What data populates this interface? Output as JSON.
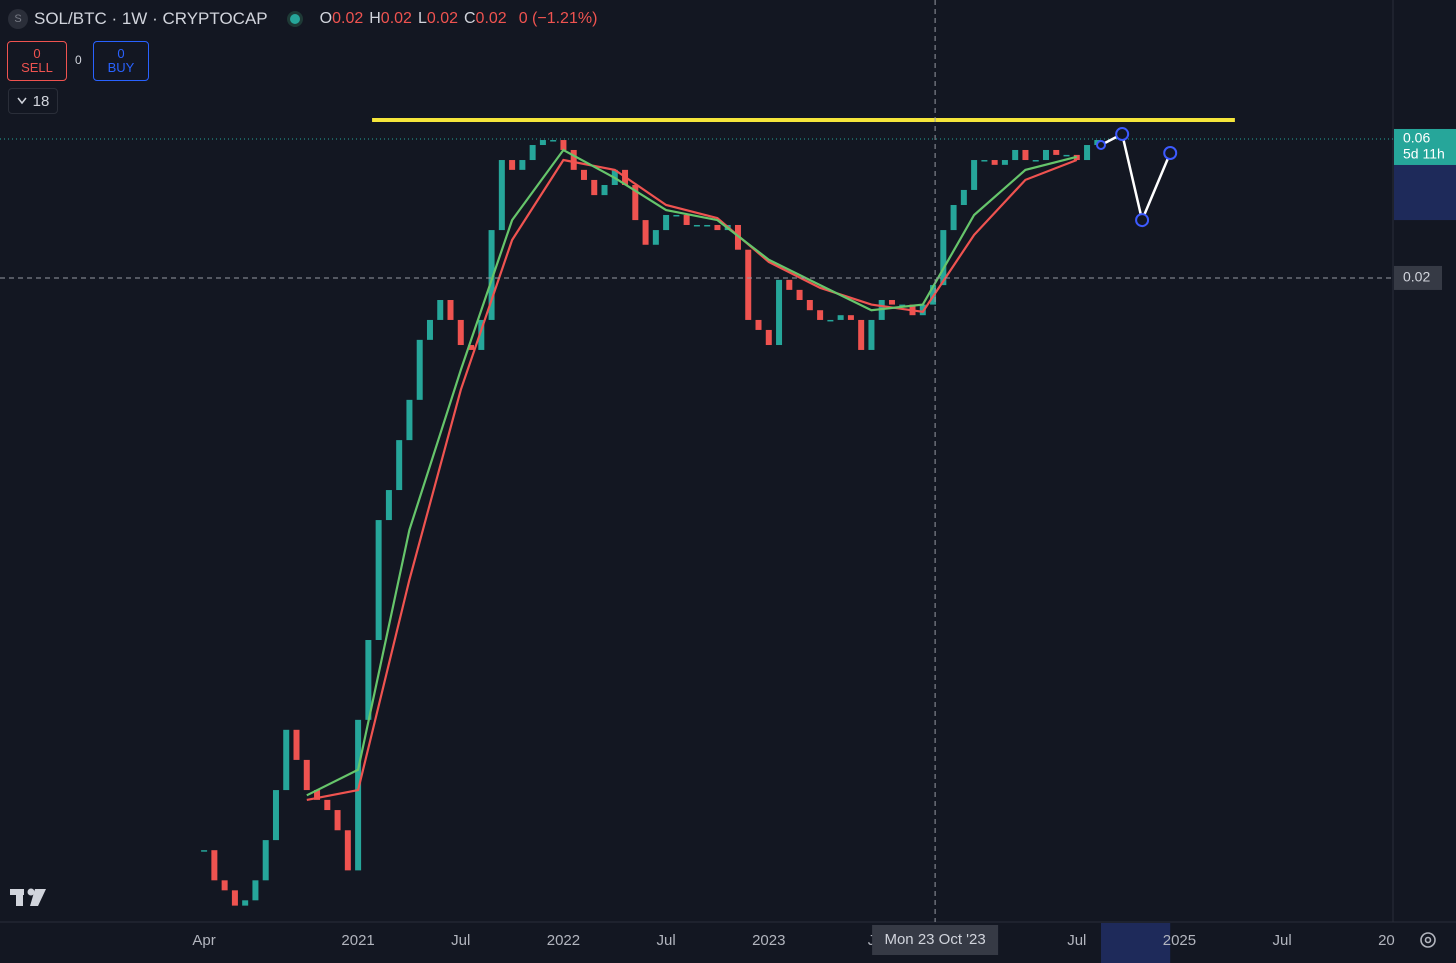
{
  "header": {
    "symbol_icon": "S",
    "title": "SOL/BTC · 1W · CRYPTOCAP",
    "ohlc": [
      {
        "label": "O",
        "value": "0.02"
      },
      {
        "label": "H",
        "value": "0.02"
      },
      {
        "label": "L",
        "value": "0.02"
      },
      {
        "label": "C",
        "value": "0.02"
      }
    ],
    "change": "0 (−1.21%)"
  },
  "trade": {
    "sell_price": "0",
    "sell_label": "SELL",
    "spread": "0",
    "buy_price": "0",
    "buy_label": "BUY"
  },
  "indicators_count": "18",
  "chart_data": {
    "type": "candlestick",
    "log_scale": true,
    "up_color": "#26a69a",
    "down_color": "#ef5350",
    "xlim": [
      2019.256,
      2026.04
    ],
    "ylim": [
      0.000123,
      0.18
    ],
    "xticks": [
      {
        "value": 2020.25,
        "label": "Apr"
      },
      2021,
      {
        "value": 2021.5,
        "label": "Jul"
      },
      2022,
      {
        "value": 2022.5,
        "label": "Jul"
      },
      2023,
      {
        "value": 2023.5,
        "label": "J"
      },
      {
        "value": 2024.5,
        "label": "Jul"
      },
      2025,
      {
        "value": 2025.5,
        "label": "Jul"
      },
      {
        "value": 2026,
        "label": "20"
      }
    ],
    "x": [
      2020.25,
      2020.3,
      2020.35,
      2020.4,
      2020.45,
      2020.5,
      2020.55,
      2020.6,
      2020.65,
      2020.7,
      2020.75,
      2020.8,
      2020.85,
      2020.9,
      2020.95,
      2021.0,
      2021.05,
      2021.1,
      2021.15,
      2021.2,
      2021.25,
      2021.3,
      2021.35,
      2021.4,
      2021.45,
      2021.5,
      2021.55,
      2021.6,
      2021.65,
      2021.7,
      2021.75,
      2021.8,
      2021.85,
      2021.9,
      2021.95,
      2022.0,
      2022.05,
      2022.1,
      2022.15,
      2022.2,
      2022.25,
      2022.3,
      2022.35,
      2022.4,
      2022.45,
      2022.5,
      2022.55,
      2022.6,
      2022.65,
      2022.7,
      2022.75,
      2022.8,
      2022.85,
      2022.9,
      2022.95,
      2023.0,
      2023.05,
      2023.1,
      2023.15,
      2023.2,
      2023.25,
      2023.3,
      2023.35,
      2023.4,
      2023.45,
      2023.5,
      2023.55,
      2023.6,
      2023.65,
      2023.7,
      2023.75,
      2023.8,
      2023.85,
      2023.9,
      2023.95,
      2024.0,
      2024.05,
      2024.1,
      2024.15,
      2024.2,
      2024.25,
      2024.3,
      2024.35,
      2024.4,
      2024.45,
      2024.5,
      2024.55,
      2024.6
    ],
    "values": [
      0.000217,
      0.000171,
      0.000158,
      0.00014,
      0.000146,
      0.000171,
      0.000235,
      0.000349,
      0.000562,
      0.000443,
      0.000349,
      0.000323,
      0.000298,
      0.000254,
      0.000185,
      0.000608,
      0.001143,
      0.00295,
      0.00374,
      0.00555,
      0.00763,
      0.01226,
      0.01435,
      0.0168,
      0.01435,
      0.01177,
      0.01132,
      0.01435,
      0.0292,
      0.0508,
      0.047,
      0.0508,
      0.0572,
      0.0595,
      0.0595,
      0.055,
      0.047,
      0.0434,
      0.0385,
      0.0417,
      0.047,
      0.0417,
      0.0316,
      0.026,
      0.0292,
      0.0329,
      0.0329,
      0.0304,
      0.0304,
      0.0304,
      0.0292,
      0.0304,
      0.025,
      0.01435,
      0.01326,
      0.01177,
      0.0197,
      0.0182,
      0.0168,
      0.0155,
      0.01435,
      0.01435,
      0.0149,
      0.01435,
      0.01132,
      0.01435,
      0.0168,
      0.0162,
      0.0162,
      0.0149,
      0.0162,
      0.0189,
      0.0292,
      0.0356,
      0.0401,
      0.0508,
      0.0508,
      0.0489,
      0.0508,
      0.055,
      0.0508,
      0.0508,
      0.055,
      0.0529,
      0.0529,
      0.0508,
      0.0572,
      0.0595
    ],
    "moving_averages": [
      {
        "color": "#ef5350",
        "x": [
          2020.75,
          2021.0,
          2021.25,
          2021.5,
          2021.75,
          2022.0,
          2022.25,
          2022.5,
          2022.75,
          2023.0,
          2023.25,
          2023.5,
          2023.75,
          2024.0,
          2024.25,
          2024.5
        ],
        "values": [
          0.000323,
          0.000349,
          0.00184,
          0.00826,
          0.027,
          0.0508,
          0.047,
          0.0356,
          0.0321,
          0.0227,
          0.0185,
          0.0162,
          0.0153,
          0.0281,
          0.0434,
          0.0508
        ]
      },
      {
        "color": "#66c56b",
        "x": [
          2020.75,
          2021.0,
          2021.25,
          2021.5,
          2021.75,
          2022.0,
          2022.25,
          2022.5,
          2022.75,
          2023.0,
          2023.25,
          2023.5,
          2023.75,
          2024.0,
          2024.25,
          2024.5
        ],
        "values": [
          0.000335,
          0.00041,
          0.00273,
          0.00966,
          0.0316,
          0.055,
          0.0441,
          0.0342,
          0.0316,
          0.0231,
          0.0189,
          0.0155,
          0.0162,
          0.0329,
          0.047,
          0.0521
        ]
      }
    ],
    "resistance": {
      "value": 0.0697,
      "x": [
        2021.068,
        2025.27
      ],
      "color": "#f5e63b"
    },
    "projection": {
      "color": "#ffffff",
      "point_color": "#3d5afe",
      "x": [
        2024.618,
        2024.721,
        2024.818,
        2024.955
      ],
      "values": [
        0.0572,
        0.0624,
        0.0316,
        0.0537
      ]
    },
    "crosshair": {
      "x": 2023.81,
      "x_label": "Mon 23 Oct '23",
      "y": 0.02
    },
    "last_price": {
      "value": 0.06,
      "countdown": "5d 11h",
      "color": "#26a69a"
    }
  }
}
